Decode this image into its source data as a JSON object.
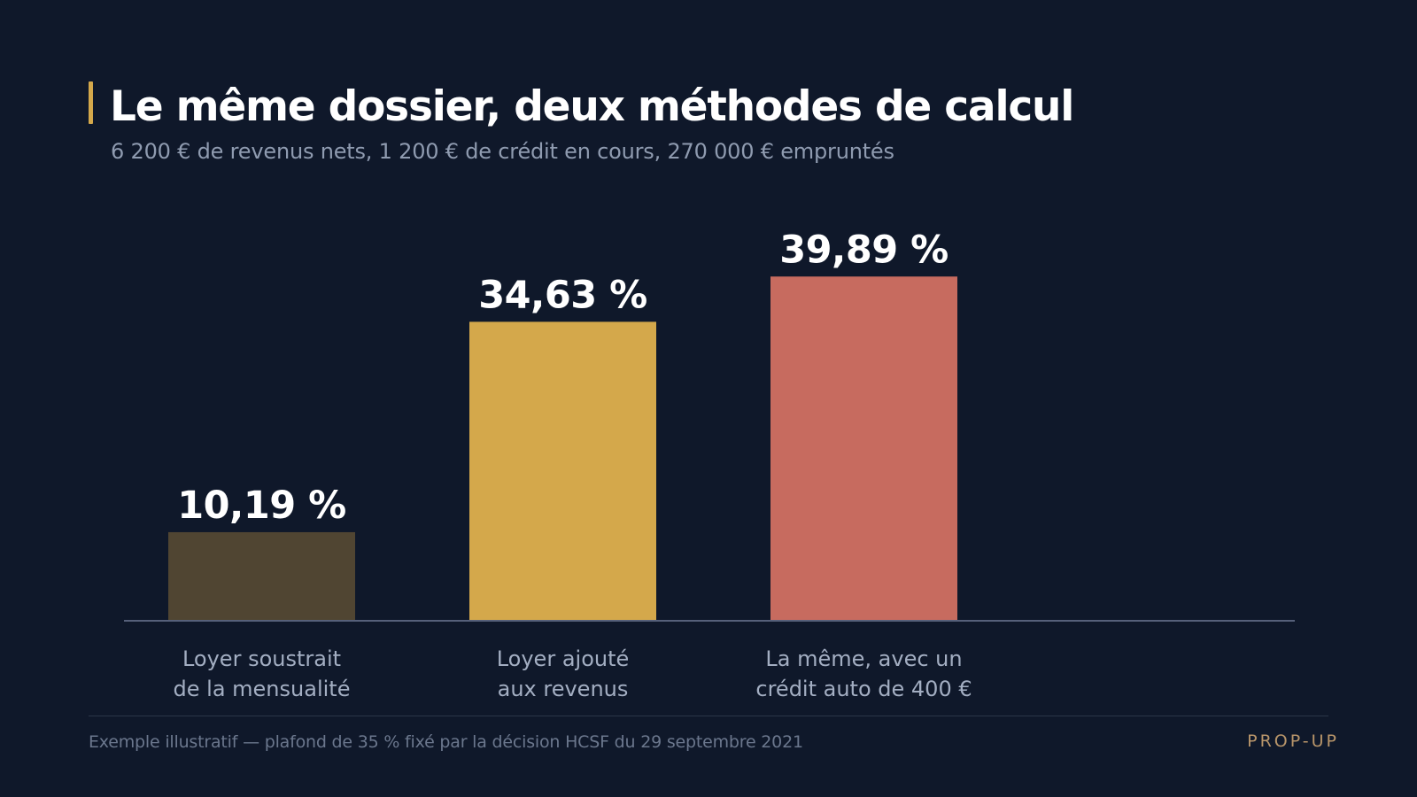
{
  "header": {
    "title": "Le même dossier, deux méthodes de calcul",
    "subtitle": "6 200 € de revenus nets, 1 200 € de crédit en cours, 270 000 € empruntés"
  },
  "footer": {
    "note": "Exemple illustratif — plafond de 35 % fixé par la décision HCSF du 29 septembre 2021",
    "brand": "PROP-UP"
  },
  "colors": {
    "background": "#0f182a",
    "accent": "#d4a84b",
    "bar_1": "#504532",
    "bar_2": "#d4a84b",
    "bar_3": "#c76b5f"
  },
  "chart_data": {
    "type": "bar",
    "title": "Le même dossier, deux méthodes de calcul",
    "subtitle": "6 200 € de revenus nets, 1 200 € de crédit en cours, 270 000 € empruntés",
    "xlabel": "",
    "ylabel": "",
    "unit": "%",
    "grid": false,
    "legend": "none",
    "ylim": [
      0,
      50
    ],
    "categories": [
      [
        "Loyer soustrait",
        "de la mensualité"
      ],
      [
        "Loyer ajouté",
        "aux revenus"
      ],
      [
        "La même, avec un",
        "crédit auto de 400 €"
      ]
    ],
    "values": [
      10.19,
      34.63,
      39.89
    ],
    "data_labels": [
      "10,19 %",
      "34,63 %",
      "39,89 %"
    ],
    "bar_colors": [
      "#504532",
      "#d4a84b",
      "#c76b5f"
    ]
  }
}
